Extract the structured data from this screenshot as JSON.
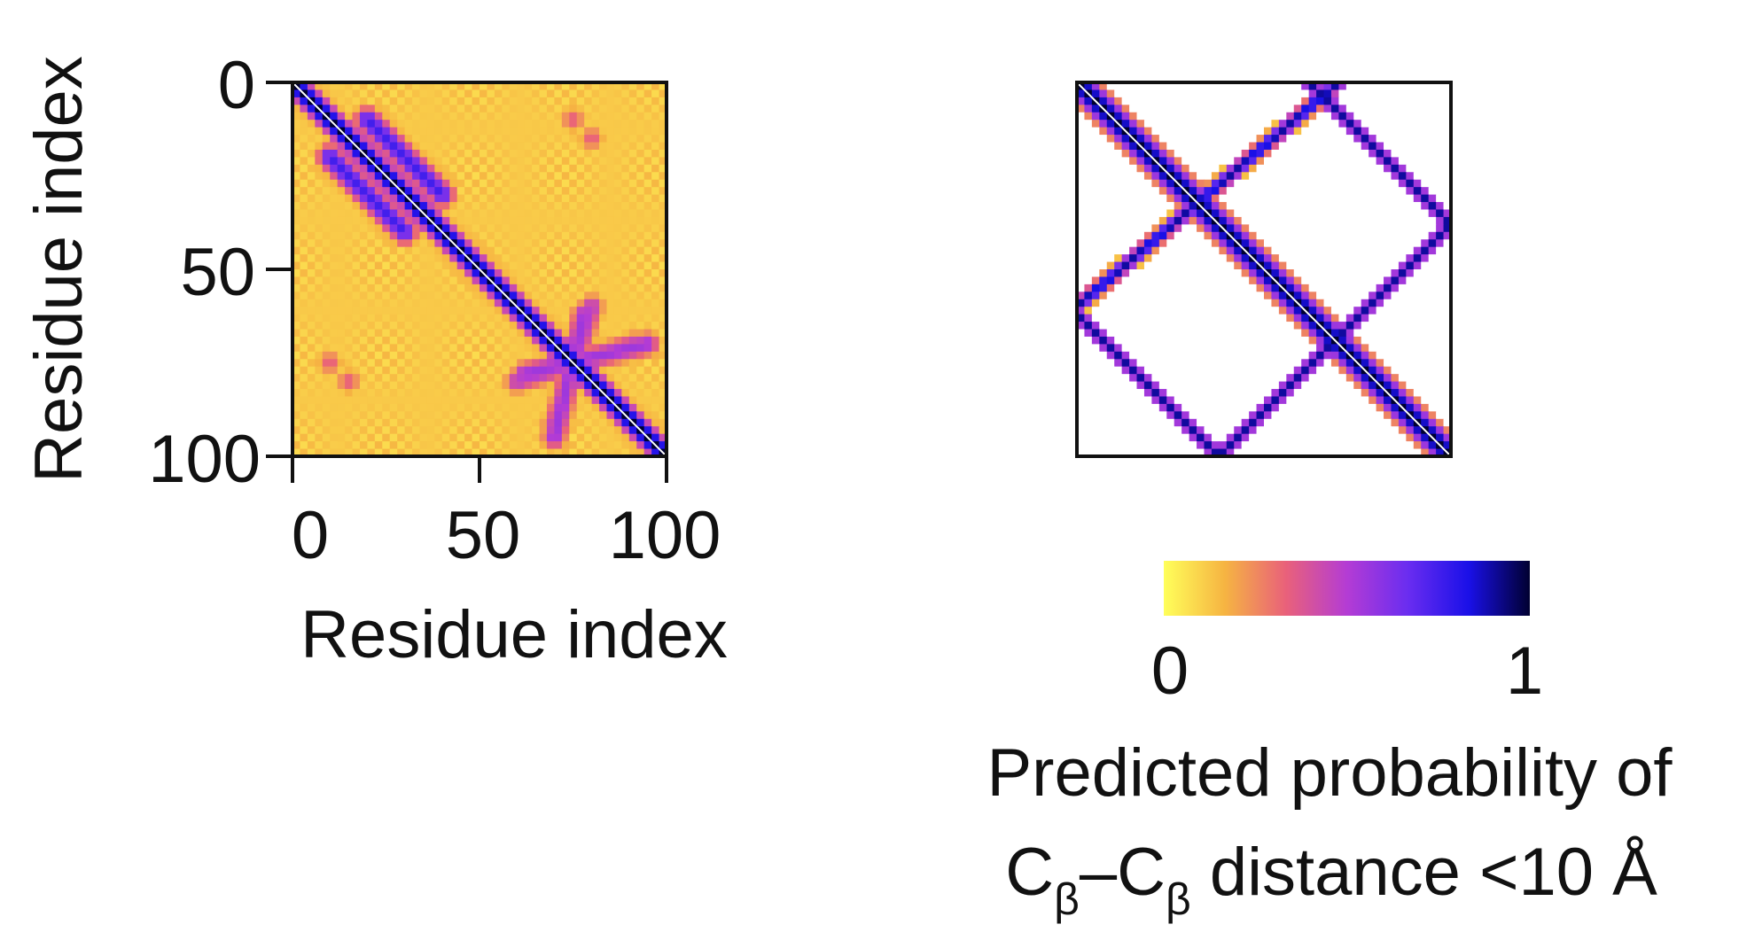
{
  "chart_data": [
    {
      "type": "heatmap",
      "title": "",
      "xlabel": "Residue index",
      "ylabel": "Residue index",
      "xlim": [
        0,
        100
      ],
      "ylim": [
        0,
        100
      ],
      "xticks": [
        "0",
        "50",
        "100"
      ],
      "yticks": [
        "0",
        "50",
        "100"
      ],
      "y_axis_direction": "top-to-bottom",
      "value_range": [
        0,
        1
      ],
      "description_of_values": "contact probability map: main diagonal ~1; secondary bands near (25-40,20-30), (65-90,65-85) and faint cross-contacts; background ~0.05-0.25",
      "features": [
        {
          "kind": "diagonal",
          "from": 0,
          "to": 100,
          "value": 1.0
        },
        {
          "kind": "band",
          "i_from": 20,
          "j_from": 10,
          "i_to": 40,
          "j_to": 30,
          "value": 0.75
        },
        {
          "kind": "band",
          "i_from": 62,
          "j_from": 78,
          "i_to": 95,
          "j_to": 70,
          "value": 0.55
        },
        {
          "kind": "band",
          "i_from": 70,
          "j_from": 92,
          "i_to": 80,
          "j_to": 60,
          "value": 0.5
        },
        {
          "kind": "spot",
          "i": 75,
          "j": 10,
          "value": 0.35
        },
        {
          "kind": "spot",
          "i": 15,
          "j": 80,
          "value": 0.35
        }
      ]
    },
    {
      "type": "heatmap",
      "title": "",
      "xlabel": "",
      "ylabel": "",
      "xlim": [
        0,
        100
      ],
      "ylim": [
        0,
        100
      ],
      "xticks": [],
      "yticks": [],
      "value_range": [
        0,
        1
      ],
      "description_of_values": "target contact pattern: thick main diagonal, plus a square/diamond of cross-hatched contacts on a white background",
      "features": [
        {
          "kind": "diagonal",
          "from": 0,
          "to": 100,
          "value": 1.0
        },
        {
          "kind": "line",
          "from": [
            62,
            0
          ],
          "to": [
            100,
            38
          ],
          "value": 0.9
        },
        {
          "kind": "line",
          "from": [
            0,
            62
          ],
          "to": [
            38,
            100
          ],
          "value": 0.9
        },
        {
          "kind": "line",
          "from": [
            70,
            0
          ],
          "to": [
            0,
            60
          ],
          "value": 0.9
        },
        {
          "kind": "line",
          "from": [
            100,
            38
          ],
          "to": [
            38,
            100
          ],
          "value": 0.9
        }
      ]
    }
  ],
  "colorbar": {
    "min_label": "0",
    "max_label": "1",
    "colors": [
      "#ffff5a",
      "#f6b442",
      "#e9617a",
      "#b43cd4",
      "#6a2df0",
      "#1a10e8",
      "#000030"
    ],
    "label_line1": "Predicted probability of",
    "label_line2_prefix": "C",
    "label_line2_sub1": "β",
    "label_line2_mid": "–C",
    "label_line2_sub2": "β",
    "label_line2_suffix": " distance <10 Å"
  }
}
